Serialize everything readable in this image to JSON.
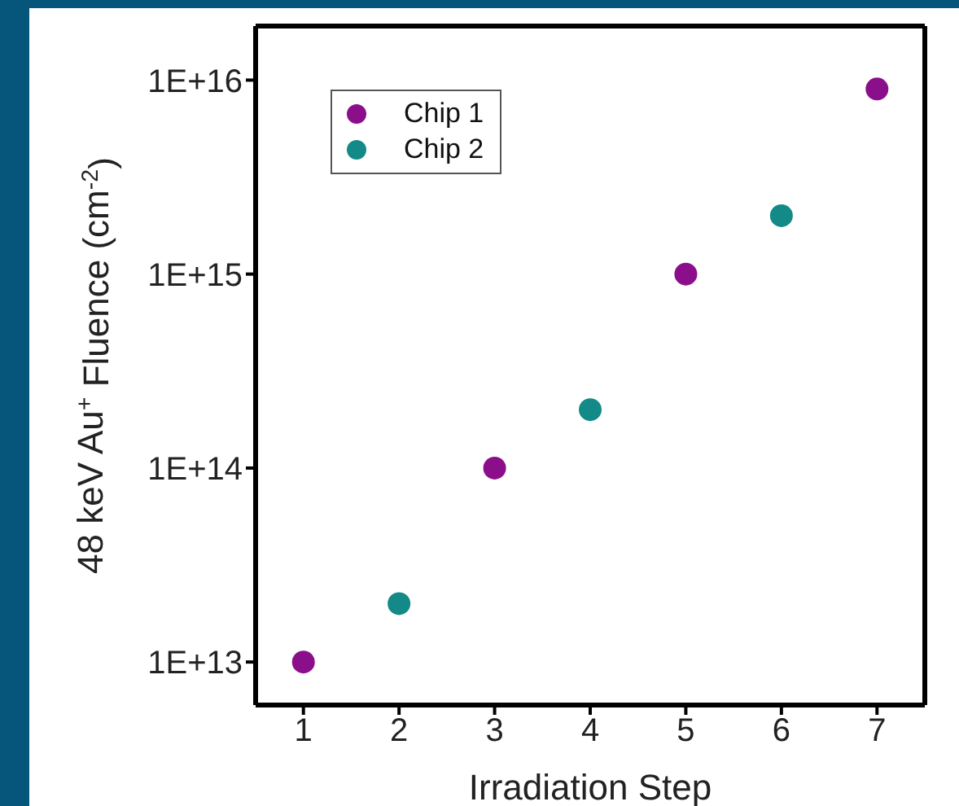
{
  "chart_data": {
    "type": "scatter",
    "xlabel": "Irradiation Step",
    "ylabel": "48 keV Au$^{+}$ Fluence (cm$^{-2}$)",
    "series": [
      {
        "name": "Chip 1",
        "color": "#8b0f8b",
        "x": [
          1,
          3,
          5,
          7
        ],
        "values": [
          10000000000000.0,
          100000000000000.0,
          1000000000000000.0,
          9000000000000000.0
        ]
      },
      {
        "name": "Chip 2",
        "color": "#138a87",
        "x": [
          2,
          4,
          6
        ],
        "values": [
          20000000000000.0,
          200000000000000.0,
          2000000000000000.0
        ]
      }
    ],
    "xlim": [
      0.5,
      7.5
    ],
    "xticks": [
      1,
      2,
      3,
      4,
      5,
      6,
      7
    ],
    "ylim": [
      6000000000000.0,
      1.9e+16
    ],
    "yticks": [
      {
        "value": 10000000000000.0,
        "label": "1E+13"
      },
      {
        "value": 100000000000000.0,
        "label": "1E+14"
      },
      {
        "value": 1000000000000000.0,
        "label": "1E+15"
      },
      {
        "value": 1e+16,
        "label": "1E+16"
      }
    ],
    "log": "y",
    "grid": false,
    "legend": "top left",
    "marker": "circle"
  }
}
